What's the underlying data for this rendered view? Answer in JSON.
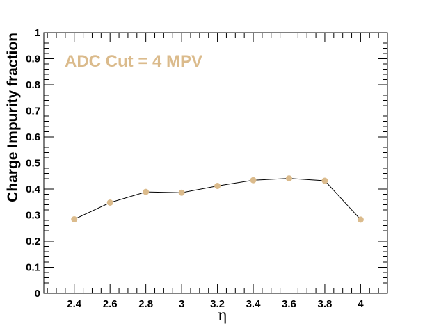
{
  "chart_data": {
    "type": "line",
    "title": "",
    "xlabel": "η",
    "ylabel": "Charge Impurity fraction",
    "xlim": [
      2.23,
      4.15
    ],
    "ylim": [
      0,
      1
    ],
    "x_ticks": [
      "2.4",
      "2.6",
      "2.8",
      "3",
      "3.2",
      "3.4",
      "3.6",
      "3.8",
      "4"
    ],
    "y_ticks": [
      "0",
      "0.1",
      "0.2",
      "0.3",
      "0.4",
      "0.5",
      "0.6",
      "0.7",
      "0.8",
      "0.9",
      "1"
    ],
    "grid": false,
    "legend": "none",
    "annotation": "ADC Cut = 4 MPV",
    "series": [
      {
        "x": [
          2.4,
          2.6,
          2.8,
          3.0,
          3.2,
          3.4,
          3.6,
          3.8,
          4.0
        ],
        "y": [
          0.284,
          0.348,
          0.389,
          0.386,
          0.412,
          0.434,
          0.441,
          0.432,
          0.283
        ],
        "marker_color": "#dbbb8c",
        "line_color": "#000000"
      }
    ]
  }
}
